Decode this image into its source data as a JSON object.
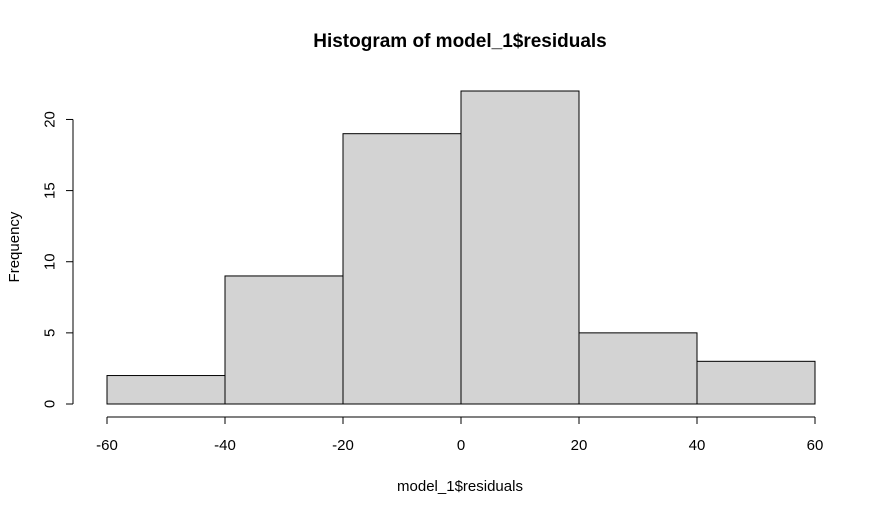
{
  "chart_data": {
    "type": "bar",
    "title": "Histogram of model_1$residuals",
    "xlabel": "model_1$residuals",
    "ylabel": "Frequency",
    "bins": [
      {
        "from": -60,
        "to": -40,
        "count": 2
      },
      {
        "from": -40,
        "to": -20,
        "count": 9
      },
      {
        "from": -20,
        "to": 0,
        "count": 19
      },
      {
        "from": 0,
        "to": 20,
        "count": 22
      },
      {
        "from": 20,
        "to": 40,
        "count": 5
      },
      {
        "from": 40,
        "to": 60,
        "count": 3
      }
    ],
    "xlim": [
      -60,
      60
    ],
    "ylim": [
      0,
      22
    ],
    "x_ticks": [
      -60,
      -40,
      -20,
      0,
      20,
      40,
      60
    ],
    "y_ticks": [
      0,
      5,
      10,
      15,
      20
    ],
    "bar_fill": "#d3d3d3",
    "bar_stroke": "#000000",
    "grid": false,
    "legend": "none"
  }
}
